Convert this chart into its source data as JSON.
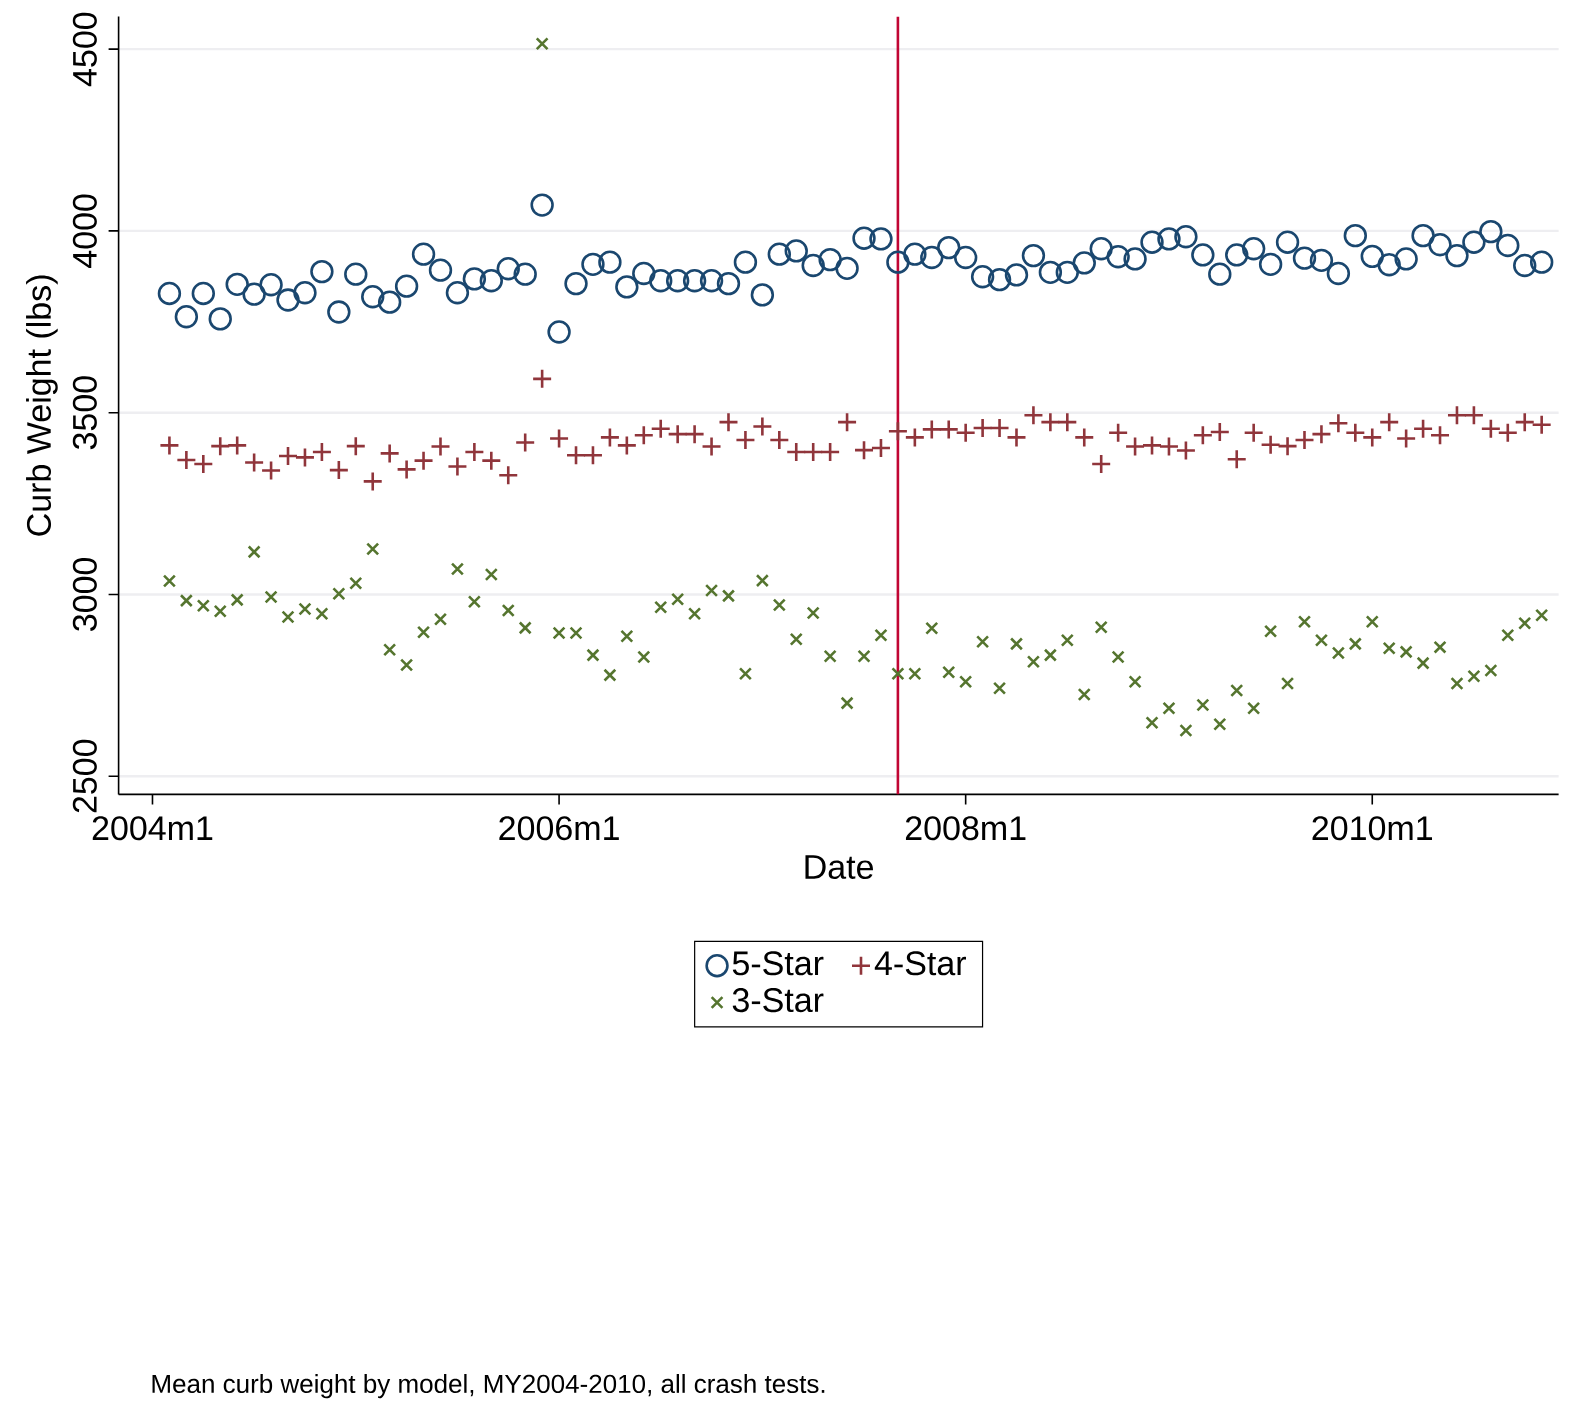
{
  "chart_data": {
    "type": "scatter",
    "xlabel": "Date",
    "ylabel": "Curb Weight (lbs)",
    "x": [
      "2004-02",
      "2004-03",
      "2004-04",
      "2004-05",
      "2004-06",
      "2004-07",
      "2004-08",
      "2004-09",
      "2004-10",
      "2004-11",
      "2004-12",
      "2005-01",
      "2005-02",
      "2005-03",
      "2005-04",
      "2005-05",
      "2005-06",
      "2005-07",
      "2005-08",
      "2005-09",
      "2005-10",
      "2005-11",
      "2005-12",
      "2006-01",
      "2006-02",
      "2006-03",
      "2006-04",
      "2006-05",
      "2006-06",
      "2006-07",
      "2006-08",
      "2006-09",
      "2006-10",
      "2006-11",
      "2006-12",
      "2007-01",
      "2007-02",
      "2007-03",
      "2007-04",
      "2007-05",
      "2007-06",
      "2007-07",
      "2007-08",
      "2007-09",
      "2007-10",
      "2007-11",
      "2007-12",
      "2008-01",
      "2008-02",
      "2008-03",
      "2008-04",
      "2008-05",
      "2008-06",
      "2008-07",
      "2008-08",
      "2008-09",
      "2008-10",
      "2008-11",
      "2008-12",
      "2009-01",
      "2009-02",
      "2009-03",
      "2009-04",
      "2009-05",
      "2009-06",
      "2009-07",
      "2009-08",
      "2009-09",
      "2009-10",
      "2009-11",
      "2009-12",
      "2010-01",
      "2010-02",
      "2010-03",
      "2010-04",
      "2010-05",
      "2010-06",
      "2010-07",
      "2010-08",
      "2010-09",
      "2010-10",
      "2010-11"
    ],
    "series": [
      {
        "name": "5-Star",
        "color": "#1a476f",
        "marker": "circle",
        "values": [
          3828,
          3764,
          3828,
          3758,
          3853,
          3826,
          3852,
          3810,
          3830,
          3888,
          3777,
          3881,
          3819,
          3804,
          3848,
          3936,
          3892,
          3830,
          3868,
          3863,
          3896,
          3881,
          4071,
          3722,
          3855,
          3908,
          3914,
          3846,
          3883,
          3863,
          3863,
          3863,
          3863,
          3855,
          3914,
          3824,
          3936,
          3945,
          3905,
          3921,
          3897,
          3980,
          3978,
          3914,
          3936,
          3927,
          3954,
          3927,
          3874,
          3866,
          3879,
          3932,
          3886,
          3886,
          3912,
          3951,
          3929,
          3923,
          3969,
          3978,
          3984,
          3934,
          3881,
          3934,
          3951,
          3908,
          3969,
          3925,
          3919,
          3883,
          3987,
          3930,
          3907,
          3923,
          3987,
          3962,
          3932,
          3969,
          3998,
          3960,
          3905,
          3914
        ]
      },
      {
        "name": "4-Star",
        "color": "#90353b",
        "marker": "plus",
        "values": [
          3410,
          3370,
          3359,
          3408,
          3410,
          3363,
          3341,
          3381,
          3377,
          3392,
          3342,
          3408,
          3311,
          3388,
          3344,
          3368,
          3407,
          3352,
          3392,
          3368,
          3328,
          3418,
          3593,
          3429,
          3383,
          3383,
          3432,
          3410,
          3438,
          3456,
          3441,
          3441,
          3407,
          3474,
          3425,
          3462,
          3425,
          3392,
          3392,
          3392,
          3474,
          3397,
          3403,
          3449,
          3432,
          3454,
          3454,
          3445,
          3458,
          3458,
          3432,
          3493,
          3474,
          3474,
          3432,
          3359,
          3445,
          3407,
          3410,
          3407,
          3396,
          3438,
          3447,
          3372,
          3445,
          3412,
          3408,
          3425,
          3441,
          3471,
          3445,
          3432,
          3474,
          3429,
          3456,
          3438,
          3493,
          3493,
          3456,
          3445,
          3474,
          3467
        ]
      },
      {
        "name": "3-Star",
        "color": "#55752f",
        "marker": "cross",
        "values": [
          3037,
          2983,
          2969,
          2954,
          2985,
          3117,
          2993,
          2938,
          2960,
          2947,
          3002,
          3031,
          3125,
          2848,
          2806,
          2896,
          2932,
          3070,
          2980,
          3055,
          2956,
          2908,
          4515,
          2894,
          2894,
          2833,
          2778,
          2885,
          2828,
          2965,
          2987,
          2947,
          3011,
          2996,
          2782,
          3038,
          2971,
          2877,
          2949,
          2830,
          2701,
          2830,
          2888,
          2782,
          2782,
          2907,
          2786,
          2760,
          2870,
          2742,
          2864,
          2815,
          2833,
          2874,
          2725,
          2910,
          2828,
          2760,
          2647,
          2687,
          2626,
          2696,
          2643,
          2736,
          2687,
          2899,
          2755,
          2925,
          2874,
          2839,
          2864,
          2925,
          2852,
          2842,
          2811,
          2855,
          2755,
          2775,
          2791,
          2888,
          2921,
          2943
        ]
      }
    ],
    "xlim": [
      "2003-11",
      "2010-12"
    ],
    "xticks": [
      {
        "value": "2004-01",
        "label": "2004m1"
      },
      {
        "value": "2006-01",
        "label": "2006m1"
      },
      {
        "value": "2008-01",
        "label": "2008m1"
      },
      {
        "value": "2010-01",
        "label": "2010m1"
      }
    ],
    "ylim": [
      2450,
      4590
    ],
    "yticks": [
      2500,
      3000,
      3500,
      4000,
      4500
    ],
    "grid": "y",
    "legend": "bottom",
    "ref_lines": [
      {
        "axis": "x",
        "value": "2007-09",
        "color": "#c10534"
      }
    ],
    "annotations": [
      "Mean curb weight by model, MY2004-2010, all crash tests."
    ]
  }
}
